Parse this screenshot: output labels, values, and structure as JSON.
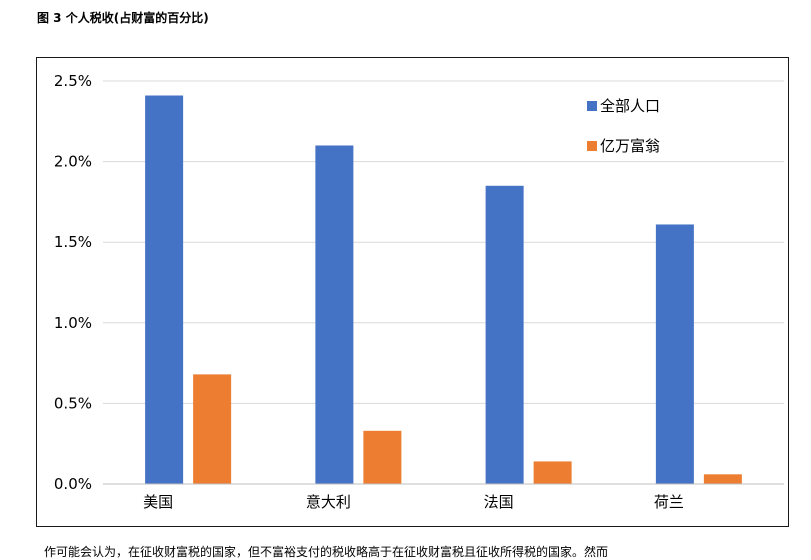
{
  "figure_title": "图 3 个人税收(占财富的百分比)",
  "footnote": "作可能会认为，在征收财富税的国家，但不富裕支付的税收略高于在征收财富税且征收所得税的国家。然而",
  "chart_data": {
    "type": "bar",
    "title": "",
    "xlabel": "",
    "ylabel": "",
    "categories": [
      "美国",
      "意大利",
      "法国",
      "荷兰"
    ],
    "series": [
      {
        "name": "全部人口",
        "color": "#4472C4",
        "values": [
          2.41,
          2.1,
          1.85,
          1.61
        ]
      },
      {
        "name": "亿万富翁",
        "color": "#ED7D31",
        "values": [
          0.68,
          0.33,
          0.14,
          0.06
        ]
      }
    ],
    "ylim": [
      0,
      2.5
    ],
    "yticks": [
      0,
      0.5,
      1.0,
      1.5,
      2.0,
      2.5
    ],
    "ytick_labels": [
      "0.0%",
      "0.5%",
      "1.0%",
      "1.5%",
      "2.0%",
      "2.5%"
    ],
    "grid": true,
    "legend_position": "top-right"
  }
}
